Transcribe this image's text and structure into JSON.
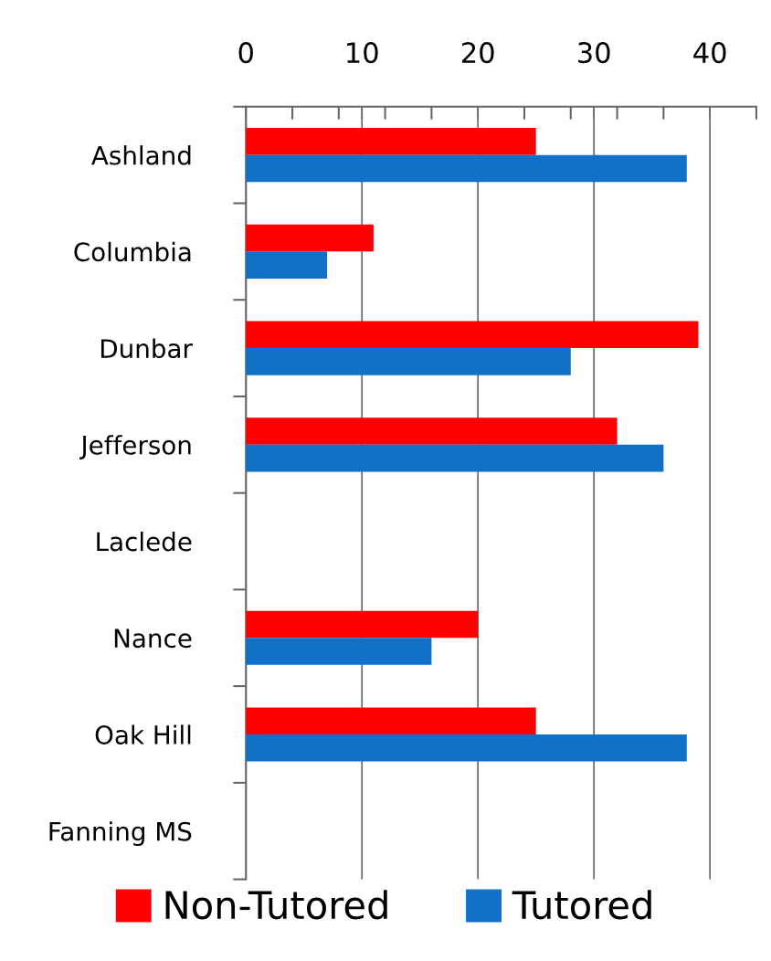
{
  "chart_data": {
    "type": "bar",
    "orientation": "horizontal",
    "categories": [
      "Ashland",
      "Columbia",
      "Dunbar",
      "Jefferson",
      "Laclede",
      "Nance",
      "Oak Hill",
      "Fanning MS"
    ],
    "series": [
      {
        "name": "Non-Tutored",
        "color": "#ff0000",
        "values": [
          25,
          11,
          39,
          32,
          null,
          20,
          25,
          null
        ]
      },
      {
        "name": "Tutored",
        "color": "#1170c8",
        "values": [
          38,
          7,
          28,
          36,
          null,
          16,
          38,
          null
        ]
      }
    ],
    "xlim": [
      0,
      44
    ],
    "xticks": [
      0,
      {
        "value": 4,
        "label": null
      },
      {
        "value": 8,
        "label": null
      },
      10,
      {
        "value": 12,
        "label": null
      },
      {
        "value": 16,
        "label": null
      },
      20,
      {
        "value": 24,
        "label": null
      },
      {
        "value": 28,
        "label": null
      },
      30,
      {
        "value": 32,
        "label": null
      },
      {
        "value": 36,
        "label": null
      },
      40,
      {
        "value": 44,
        "label": null
      }
    ],
    "grid": "x",
    "legend": "bottom"
  }
}
